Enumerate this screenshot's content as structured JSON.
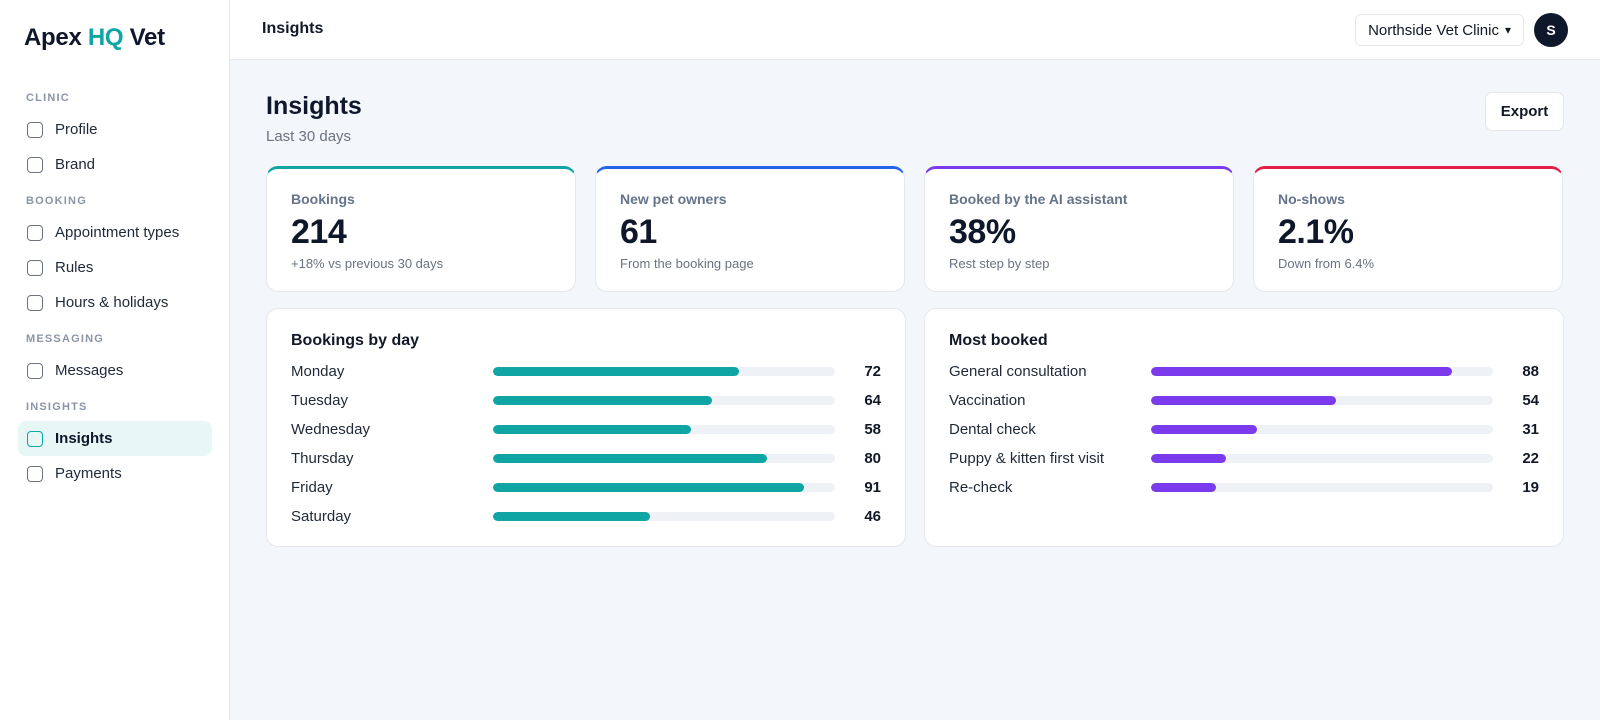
{
  "brand": {
    "part1": "Apex",
    "part2": "HQ",
    "part3": "Vet",
    "accent_color": "#0ea5a4"
  },
  "sidebar": {
    "sections": [
      {
        "label": "CLINIC",
        "items": [
          {
            "label": "Profile"
          },
          {
            "label": "Brand"
          }
        ]
      },
      {
        "label": "BOOKING",
        "items": [
          {
            "label": "Appointment types"
          },
          {
            "label": "Rules"
          },
          {
            "label": "Hours & holidays"
          }
        ]
      },
      {
        "label": "MESSAGING",
        "items": [
          {
            "label": "Messages"
          }
        ]
      },
      {
        "label": "INSIGHTS",
        "items": [
          {
            "label": "Insights",
            "active": true
          },
          {
            "label": "Payments"
          }
        ]
      }
    ]
  },
  "topbar": {
    "title": "Insights",
    "clinic": "Northside Vet Clinic",
    "clinic_caret": "▾",
    "avatar_initial": "S"
  },
  "page": {
    "title": "Insights",
    "subtitle": "Last 30 days",
    "export_label": "Export"
  },
  "stats": [
    {
      "label": "Bookings",
      "value": "214",
      "note": "+18% vs previous 30 days",
      "color": "#0ea5a4"
    },
    {
      "label": "New pet owners",
      "value": "61",
      "note": "From the booking page",
      "color": "#2563eb"
    },
    {
      "label": "Booked by the AI assistant",
      "value": "38%",
      "note": "Rest step by step",
      "color": "#7c3aed"
    },
    {
      "label": "No-shows",
      "value": "2.1%",
      "note": "Down from 6.4%",
      "color": "#e11d48"
    }
  ],
  "bookings_by_day": {
    "title": "Bookings by day",
    "color": "#0ea5a4",
    "max": 100,
    "rows": [
      {
        "label": "Monday",
        "value": 72
      },
      {
        "label": "Tuesday",
        "value": 64
      },
      {
        "label": "Wednesday",
        "value": 58
      },
      {
        "label": "Thursday",
        "value": 80
      },
      {
        "label": "Friday",
        "value": 91
      },
      {
        "label": "Saturday",
        "value": 46
      }
    ]
  },
  "most_booked": {
    "title": "Most booked",
    "color": "#7c3aed",
    "max": 100,
    "rows": [
      {
        "label": "General consultation",
        "value": 88
      },
      {
        "label": "Vaccination",
        "value": 54
      },
      {
        "label": "Dental check",
        "value": 31
      },
      {
        "label": "Puppy & kitten first visit",
        "value": 22
      },
      {
        "label": "Re-check",
        "value": 19
      }
    ]
  }
}
